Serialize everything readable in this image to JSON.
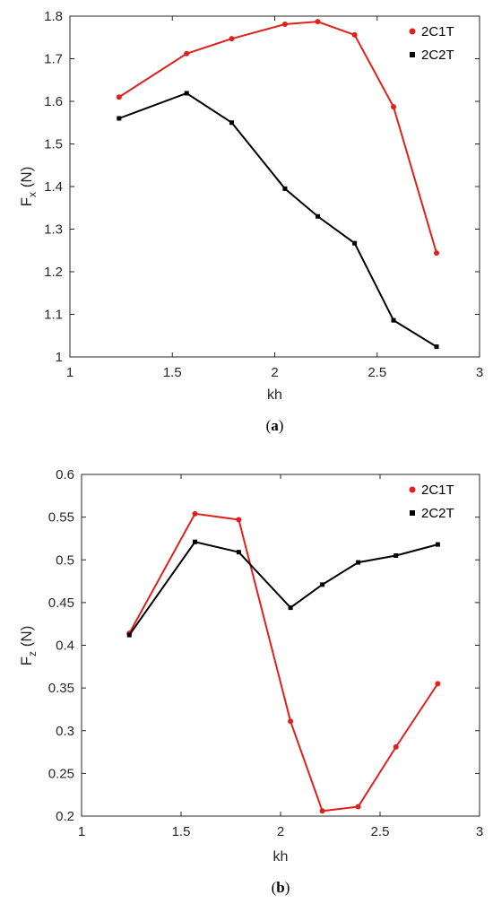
{
  "chart_data": [
    {
      "type": "line",
      "caption_letter": "a",
      "ylabel_main": "F",
      "ylabel_sub": "x",
      "ylabel_unit": " (N)",
      "xlabel": "kh",
      "xlim": [
        1,
        3
      ],
      "ylim": [
        1,
        1.8
      ],
      "xticks": [
        1,
        1.5,
        2,
        2.5,
        3
      ],
      "xtick_labels": [
        "1",
        "1.5",
        "2",
        "2.5",
        "3"
      ],
      "yticks": [
        1,
        1.1,
        1.2,
        1.3,
        1.4,
        1.5,
        1.6,
        1.7,
        1.8
      ],
      "ytick_labels": [
        "1",
        "1.1",
        "1.2",
        "1.3",
        "1.4",
        "1.5",
        "1.6",
        "1.7",
        "1.8"
      ],
      "legend_position": "top-right",
      "grid": false,
      "series": [
        {
          "name": "2C1T",
          "color": "#e0201b",
          "marker": "circle",
          "x": [
            1.24,
            1.57,
            1.79,
            2.05,
            2.21,
            2.39,
            2.58,
            2.79
          ],
          "y": [
            1.61,
            1.712,
            1.747,
            1.781,
            1.787,
            1.756,
            1.587,
            1.244
          ]
        },
        {
          "name": "2C2T",
          "color": "#000000",
          "marker": "square",
          "x": [
            1.24,
            1.57,
            1.79,
            2.05,
            2.21,
            2.39,
            2.58,
            2.79
          ],
          "y": [
            1.56,
            1.619,
            1.55,
            1.395,
            1.33,
            1.267,
            1.086,
            1.024
          ]
        }
      ]
    },
    {
      "type": "line",
      "caption_letter": "b",
      "ylabel_main": "F",
      "ylabel_sub": "z",
      "ylabel_unit": " (N)",
      "xlabel": "kh",
      "xlim": [
        1,
        3
      ],
      "ylim": [
        0.2,
        0.6
      ],
      "xticks": [
        1,
        1.5,
        2,
        2.5,
        3
      ],
      "xtick_labels": [
        "1",
        "1.5",
        "2",
        "2.5",
        "3"
      ],
      "yticks": [
        0.2,
        0.25,
        0.3,
        0.35,
        0.4,
        0.45,
        0.5,
        0.55,
        0.6
      ],
      "ytick_labels": [
        "0.2",
        "0.25",
        "0.3",
        "0.35",
        "0.4",
        "0.45",
        "0.5",
        "0.55",
        "0.6"
      ],
      "legend_position": "top-right",
      "grid": false,
      "series": [
        {
          "name": "2C1T",
          "color": "#e0201b",
          "marker": "circle",
          "x": [
            1.24,
            1.57,
            1.79,
            2.05,
            2.21,
            2.39,
            2.58,
            2.79
          ],
          "y": [
            0.414,
            0.554,
            0.547,
            0.311,
            0.206,
            0.211,
            0.281,
            0.355
          ]
        },
        {
          "name": "2C2T",
          "color": "#000000",
          "marker": "square",
          "x": [
            1.24,
            1.57,
            1.79,
            2.05,
            2.21,
            2.39,
            2.58,
            2.79
          ],
          "y": [
            0.412,
            0.521,
            0.509,
            0.444,
            0.471,
            0.497,
            0.505,
            0.518
          ]
        }
      ]
    }
  ]
}
